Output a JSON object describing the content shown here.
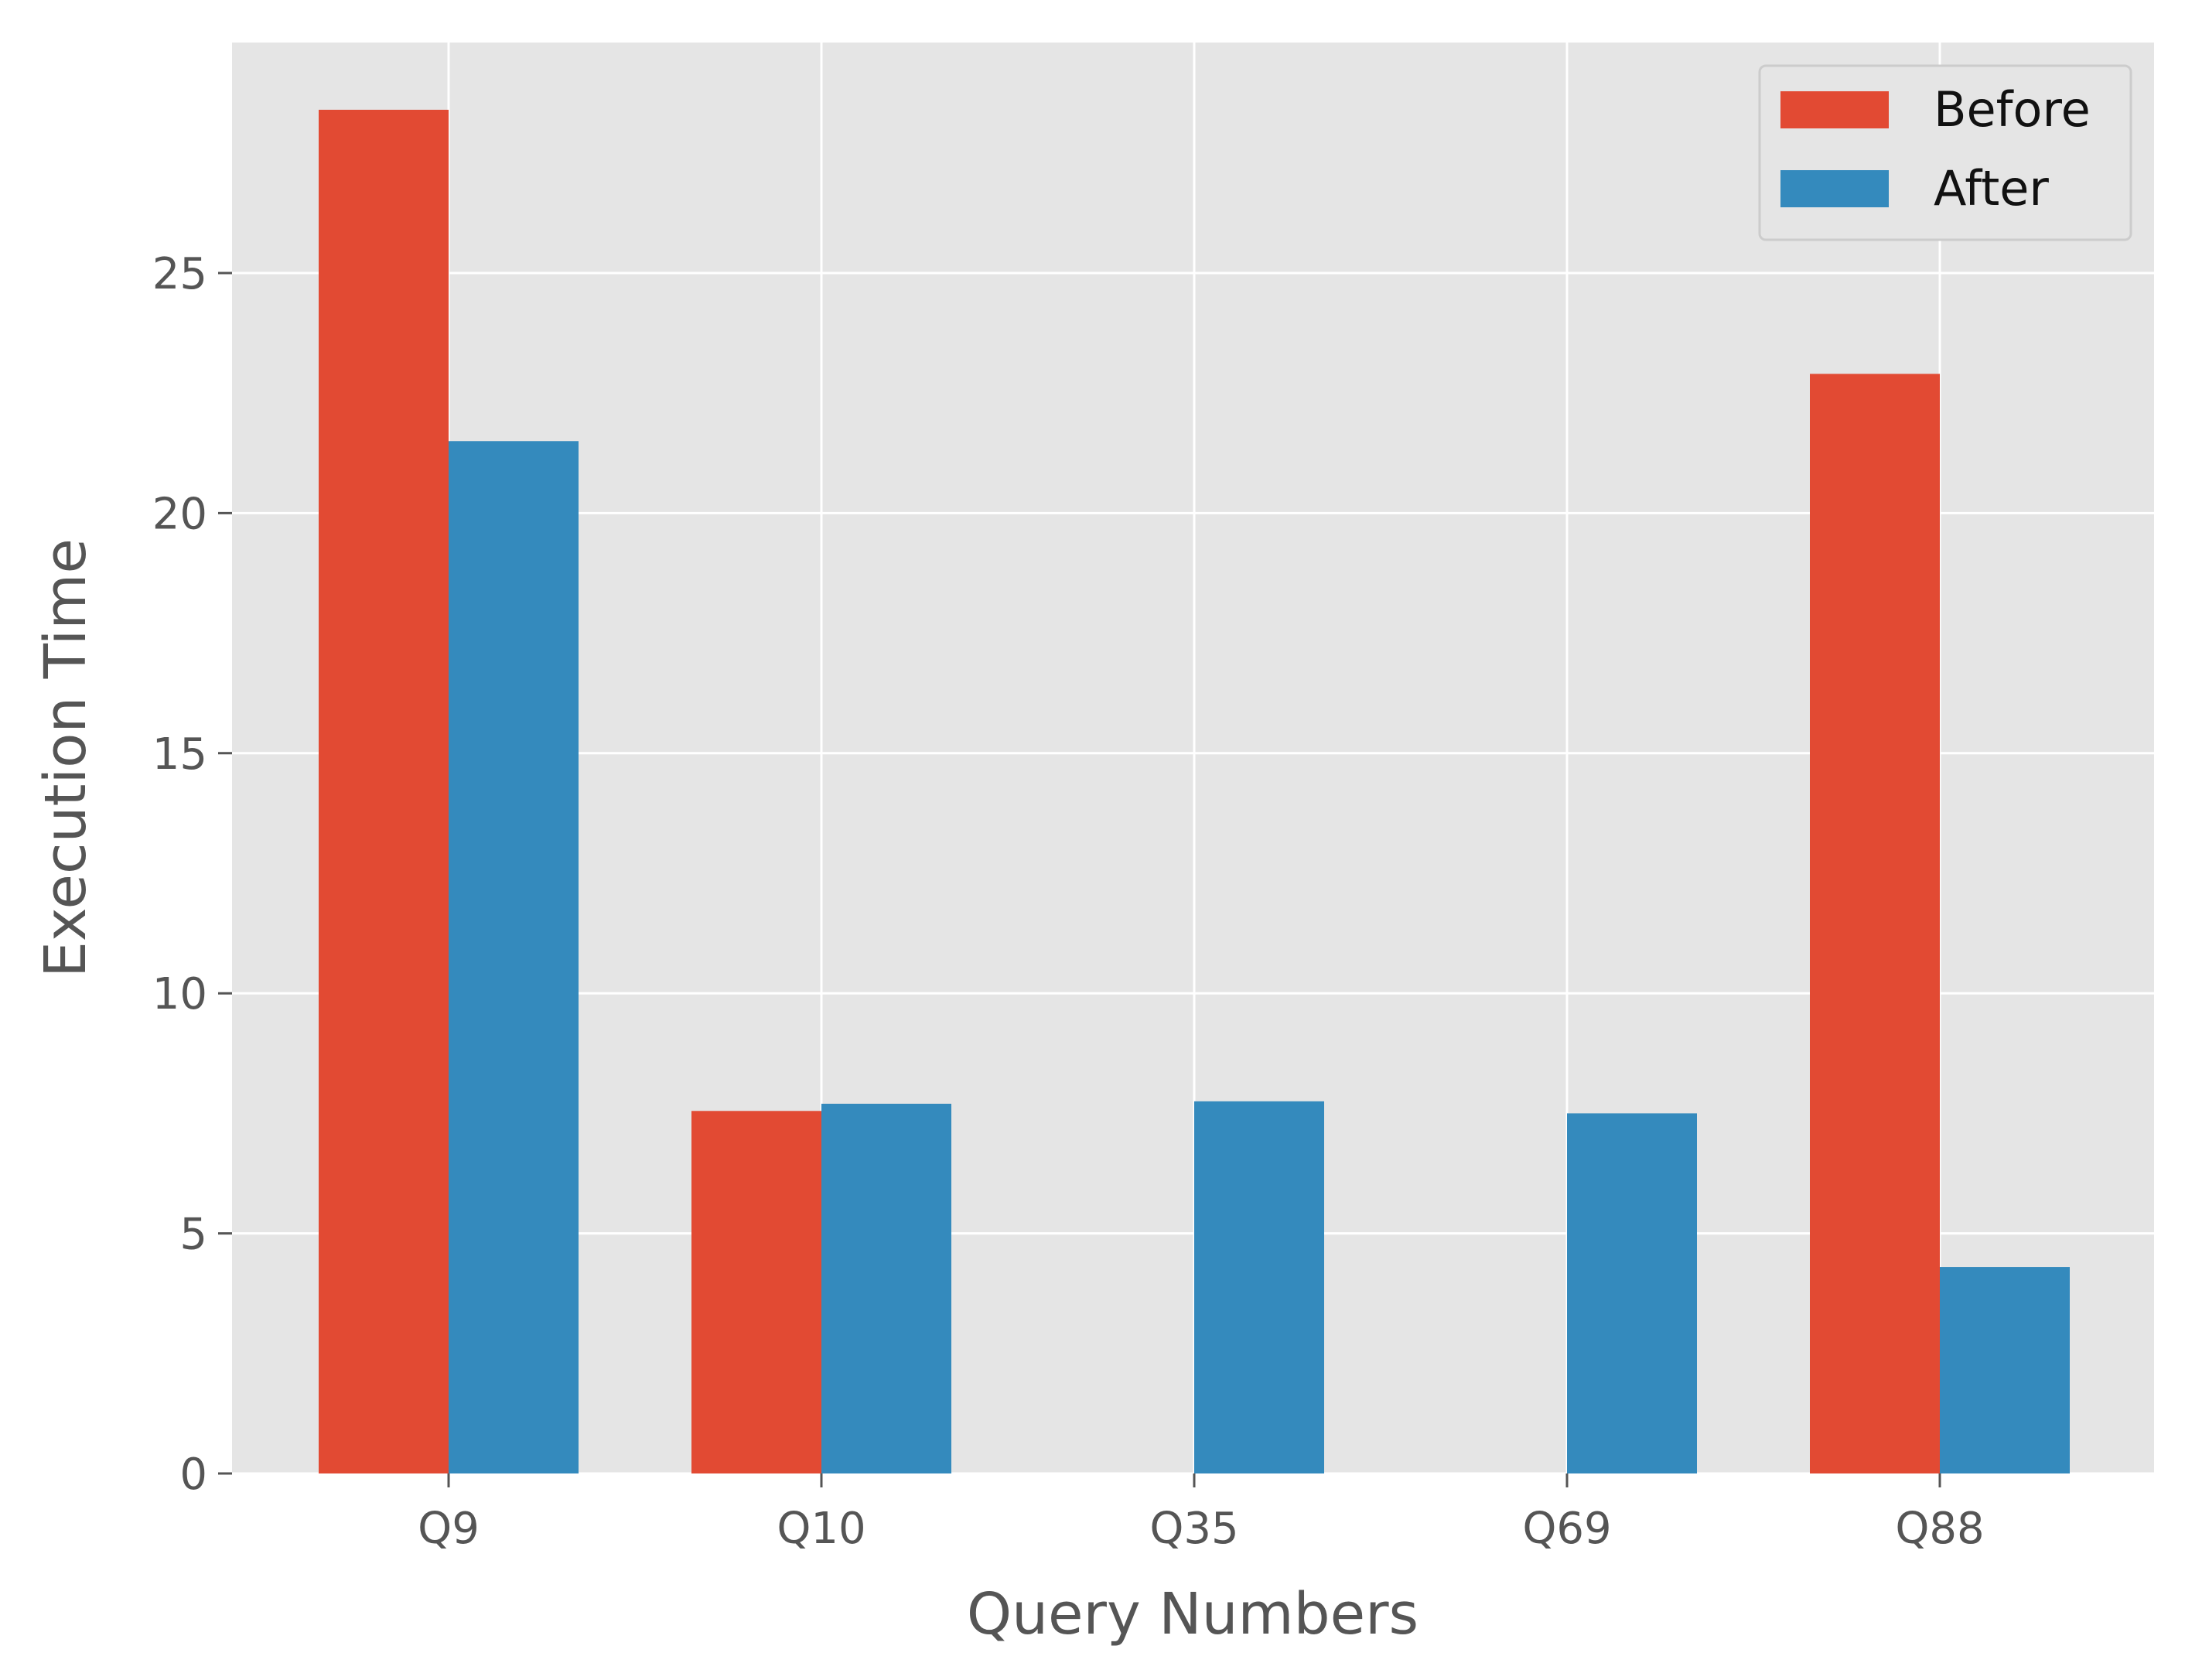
{
  "chart_data": {
    "type": "bar",
    "title": "",
    "xlabel": "Query Numbers",
    "ylabel": "Execution Time",
    "categories": [
      "Q9",
      "Q10",
      "Q35",
      "Q69",
      "Q88"
    ],
    "series": [
      {
        "name": "Before",
        "color": "#E24A33",
        "values": [
          28.4,
          7.55,
          0,
          0,
          22.9
        ]
      },
      {
        "name": "After",
        "color": "#348ABD",
        "values": [
          21.5,
          7.7,
          7.75,
          7.5,
          4.3
        ]
      }
    ],
    "ylim": [
      0,
      29.8
    ],
    "yticks": [
      "0",
      "5",
      "10",
      "15",
      "20",
      "25"
    ],
    "grid": true,
    "legend_position": "top-right"
  }
}
